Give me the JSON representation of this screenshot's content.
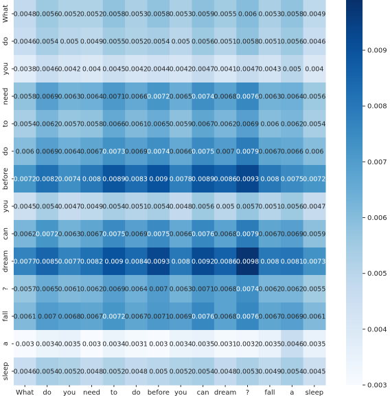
{
  "chart_data": {
    "type": "heatmap",
    "title": "",
    "xlabel": "",
    "ylabel": "",
    "x_categories": [
      "What",
      "do",
      "you",
      "need",
      "to",
      "do",
      "before",
      "you",
      "can",
      "dream",
      "?",
      "fall",
      "a",
      "sleep"
    ],
    "y_categories": [
      "What",
      "do",
      "you",
      "need",
      "to",
      "do",
      "before",
      "you",
      "can",
      "dream",
      "?",
      "fall",
      "a",
      "sleep"
    ],
    "values": [
      [
        0.0048,
        0.0056,
        0.0052,
        0.0052,
        0.0058,
        0.0053,
        0.0058,
        0.0053,
        0.0059,
        0.0055,
        0.006,
        0.0053,
        0.0058,
        0.0049
      ],
      [
        0.0046,
        0.0054,
        0.005,
        0.0049,
        0.0055,
        0.0052,
        0.0054,
        0.005,
        0.0056,
        0.0051,
        0.0058,
        0.0051,
        0.0056,
        0.0046
      ],
      [
        0.0038,
        0.0046,
        0.0042,
        0.004,
        0.0045,
        0.0042,
        0.0044,
        0.0042,
        0.0047,
        0.0041,
        0.0047,
        0.0043,
        0.005,
        0.004
      ],
      [
        0.0058,
        0.0069,
        0.0063,
        0.0064,
        0.0071,
        0.0066,
        0.0072,
        0.0065,
        0.0074,
        0.0068,
        0.0076,
        0.0063,
        0.0064,
        0.0056
      ],
      [
        0.0054,
        0.0062,
        0.0057,
        0.0058,
        0.0066,
        0.0061,
        0.0065,
        0.0059,
        0.0067,
        0.0062,
        0.0069,
        0.006,
        0.0062,
        0.0054
      ],
      [
        0.006,
        0.0069,
        0.0064,
        0.0067,
        0.0073,
        0.0069,
        0.0074,
        0.0066,
        0.0075,
        0.007,
        0.0079,
        0.0067,
        0.0066,
        0.006
      ],
      [
        0.0072,
        0.0082,
        0.0074,
        0.008,
        0.0089,
        0.0083,
        0.009,
        0.0078,
        0.0089,
        0.0086,
        0.0093,
        0.008,
        0.0075,
        0.0072
      ],
      [
        0.0045,
        0.0054,
        0.0047,
        0.0049,
        0.0054,
        0.0051,
        0.0054,
        0.0048,
        0.0056,
        0.005,
        0.0057,
        0.0051,
        0.0056,
        0.0047
      ],
      [
        0.0062,
        0.0072,
        0.0063,
        0.0067,
        0.0075,
        0.0069,
        0.0075,
        0.0066,
        0.0076,
        0.0068,
        0.0079,
        0.0067,
        0.0069,
        0.0059
      ],
      [
        0.0077,
        0.0085,
        0.0077,
        0.0082,
        0.009,
        0.0084,
        0.0093,
        0.008,
        0.0092,
        0.0086,
        0.0098,
        0.008,
        0.0081,
        0.0073
      ],
      [
        0.0057,
        0.0065,
        0.0061,
        0.0062,
        0.0069,
        0.0064,
        0.007,
        0.0063,
        0.0071,
        0.0068,
        0.0074,
        0.0062,
        0.0062,
        0.0055
      ],
      [
        0.0061,
        0.007,
        0.0068,
        0.0067,
        0.0072,
        0.0067,
        0.0071,
        0.0069,
        0.0076,
        0.0068,
        0.0076,
        0.0067,
        0.0069,
        0.0061
      ],
      [
        0.003,
        0.0034,
        0.0035,
        0.003,
        0.0034,
        0.0031,
        0.003,
        0.0034,
        0.0035,
        0.0031,
        0.0032,
        0.0035,
        0.0046,
        0.0035
      ],
      [
        0.0046,
        0.0054,
        0.0052,
        0.0048,
        0.0052,
        0.0048,
        0.005,
        0.0052,
        0.0054,
        0.0048,
        0.0053,
        0.0049,
        0.0054,
        0.0045
      ]
    ],
    "value_labels": [
      [
        "0.0048",
        "0.0056",
        "0.0052",
        "0.0052",
        "0.0058",
        "0.0053",
        "0.0058",
        "0.0053",
        "0.0059",
        "0.0055",
        "0.006",
        "0.0053",
        "0.0058",
        "0.0049"
      ],
      [
        "0.0046",
        "0.0054",
        "0.005",
        "0.0049",
        "0.0055",
        "0.0052",
        "0.0054",
        "0.005",
        "0.0056",
        "0.0051",
        "0.0058",
        "0.0051",
        "0.0056",
        "0.0046"
      ],
      [
        "0.0038",
        "0.0046",
        "0.0042",
        "0.004",
        "0.0045",
        "0.0042",
        "0.0044",
        "0.0042",
        "0.0047",
        "0.0041",
        "0.0047",
        "0.0043",
        "0.005",
        "0.004"
      ],
      [
        "0.0058",
        "0.0069",
        "0.0063",
        "0.0064",
        "0.0071",
        "0.0066",
        "0.0072",
        "0.0065",
        "0.0074",
        "0.0068",
        "0.0076",
        "0.0063",
        "0.0064",
        "0.0056"
      ],
      [
        "0.0054",
        "0.0062",
        "0.0057",
        "0.0058",
        "0.0066",
        "0.0061",
        "0.0065",
        "0.0059",
        "0.0067",
        "0.0062",
        "0.0069",
        "0.006",
        "0.0062",
        "0.0054"
      ],
      [
        "0.006",
        "0.0069",
        "0.0064",
        "0.0067",
        "0.0073",
        "0.0069",
        "0.0074",
        "0.0066",
        "0.0075",
        "0.007",
        "0.0079",
        "0.0067",
        "0.0066",
        "0.006"
      ],
      [
        "0.0072",
        "0.0082",
        "0.0074",
        "0.008",
        "0.0089",
        "0.0083",
        "0.009",
        "0.0078",
        "0.0089",
        "0.0086",
        "0.0093",
        "0.008",
        "0.0075",
        "0.0072"
      ],
      [
        "0.0045",
        "0.0054",
        "0.0047",
        "0.0049",
        "0.0054",
        "0.0051",
        "0.0054",
        "0.0048",
        "0.0056",
        "0.005",
        "0.0057",
        "0.0051",
        "0.0056",
        "0.0047"
      ],
      [
        "0.0062",
        "0.0072",
        "0.0063",
        "0.0067",
        "0.0075",
        "0.0069",
        "0.0075",
        "0.0066",
        "0.0076",
        "0.0068",
        "0.0079",
        "0.0067",
        "0.0069",
        "0.0059"
      ],
      [
        "0.0077",
        "0.0085",
        "0.0077",
        "0.0082",
        "0.009",
        "0.0084",
        "0.0093",
        "0.008",
        "0.0092",
        "0.0086",
        "0.0098",
        "0.008",
        "0.0081",
        "0.0073"
      ],
      [
        "0.0057",
        "0.0065",
        "0.0061",
        "0.0062",
        "0.0069",
        "0.0064",
        "0.007",
        "0.0063",
        "0.0071",
        "0.0068",
        "0.0074",
        "0.0062",
        "0.0062",
        "0.0055"
      ],
      [
        "0.0061",
        "0.007",
        "0.0068",
        "0.0067",
        "0.0072",
        "0.0067",
        "0.0071",
        "0.0069",
        "0.0076",
        "0.0068",
        "0.0076",
        "0.0067",
        "0.0069",
        "0.0061"
      ],
      [
        "0.003",
        "0.0034",
        "0.0035",
        "0.003",
        "0.0034",
        "0.0031",
        "0.003",
        "0.0034",
        "0.0035",
        "0.0031",
        "0.0032",
        "0.0035",
        "0.0046",
        "0.0035"
      ],
      [
        "0.0046",
        "0.0054",
        "0.0052",
        "0.0048",
        "0.0052",
        "0.0048",
        "0.005",
        "0.0052",
        "0.0054",
        "0.0048",
        "0.0053",
        "0.0049",
        "0.0054",
        "0.0045"
      ]
    ],
    "colorbar": {
      "colormap": "Blues",
      "range": [
        0.003,
        0.0099
      ],
      "ticks": [
        0.003,
        0.004,
        0.005,
        0.006,
        0.007,
        0.008,
        0.009
      ],
      "tick_labels": [
        "0.003",
        "0.004",
        "0.005",
        "0.006",
        "0.007",
        "0.008",
        "0.009"
      ]
    }
  }
}
